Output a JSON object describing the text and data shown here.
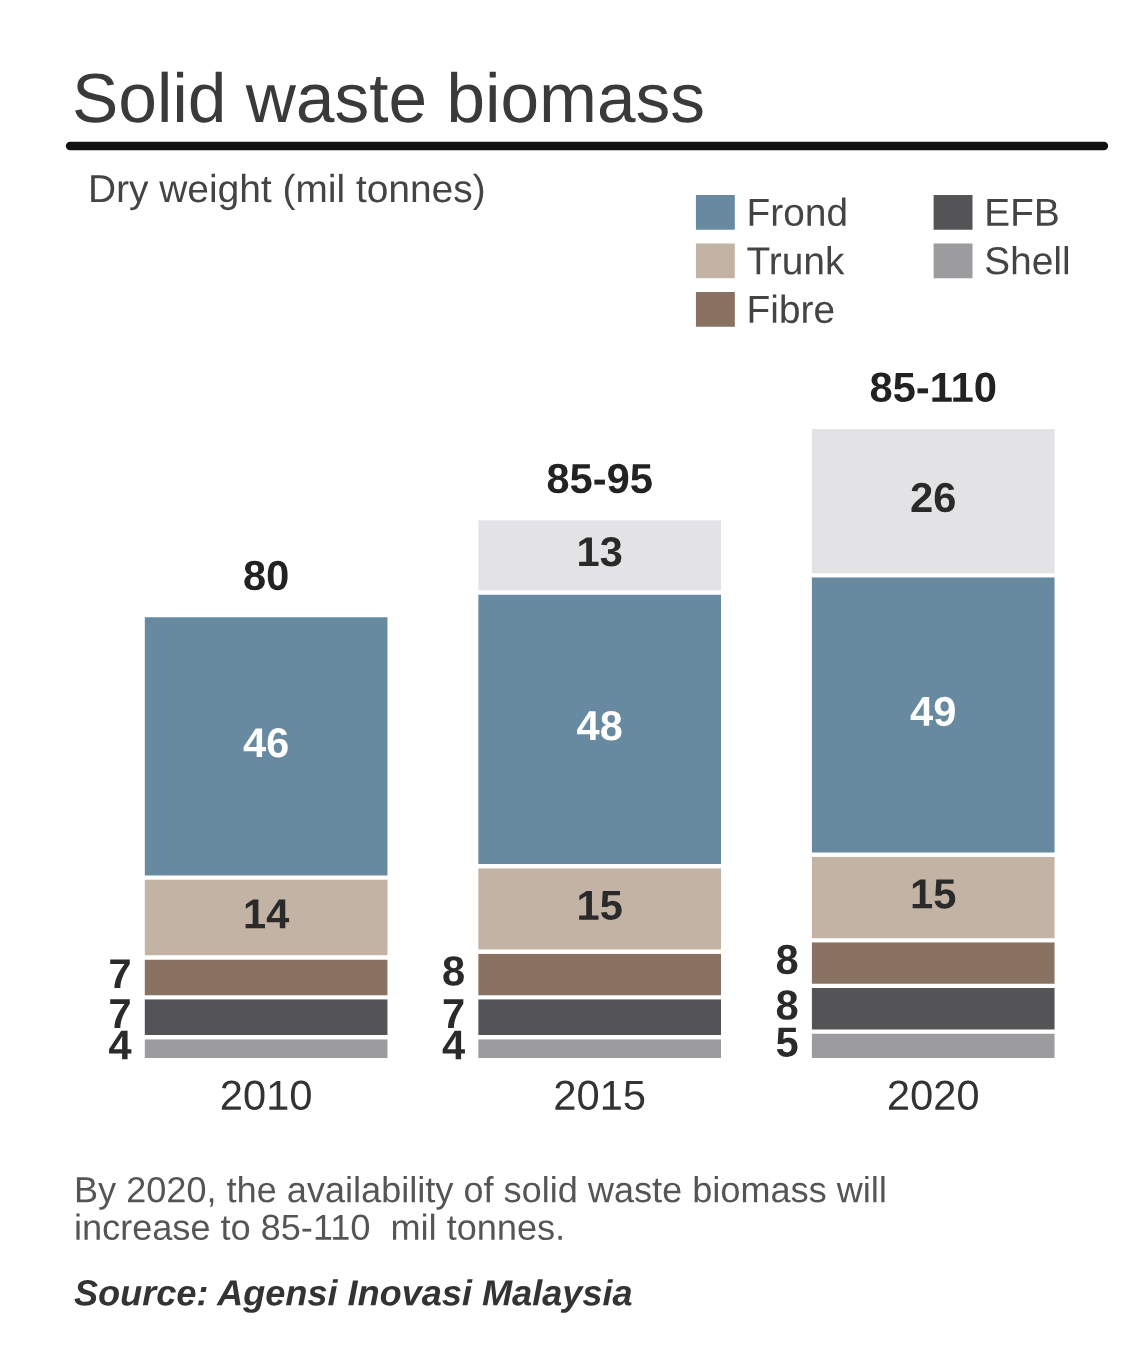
{
  "chart_data": {
    "type": "bar",
    "stacked": true,
    "title": "Solid waste biomass",
    "subtitle": "Dry weight (mil tonnes)",
    "categories": [
      "2010",
      "2015",
      "2020"
    ],
    "series": [
      {
        "name": "Shell",
        "color": "#9c9c9e",
        "values": [
          4,
          4,
          5
        ]
      },
      {
        "name": "EFB",
        "color": "#545457",
        "values": [
          7,
          7,
          8
        ]
      },
      {
        "name": "Fibre",
        "color": "#8a7262",
        "values": [
          7,
          8,
          8
        ]
      },
      {
        "name": "Trunk",
        "color": "#c3b3a5",
        "values": [
          14,
          15,
          15
        ]
      },
      {
        "name": "Frond",
        "color": "#678aa1",
        "values": [
          46,
          48,
          49
        ]
      },
      {
        "color": "#e3e3e5",
        "values": [
          null,
          13,
          26
        ]
      }
    ],
    "data_labels": true,
    "totals": [
      "80",
      "85-95",
      "85-110"
    ],
    "legend": "top right",
    "grid": false,
    "annotations": [
      "By 2020, the availability of solid waste biomass will increase to 85-110  mil tonnes.",
      "Source: Agensi Inovasi Malaysia"
    ]
  }
}
